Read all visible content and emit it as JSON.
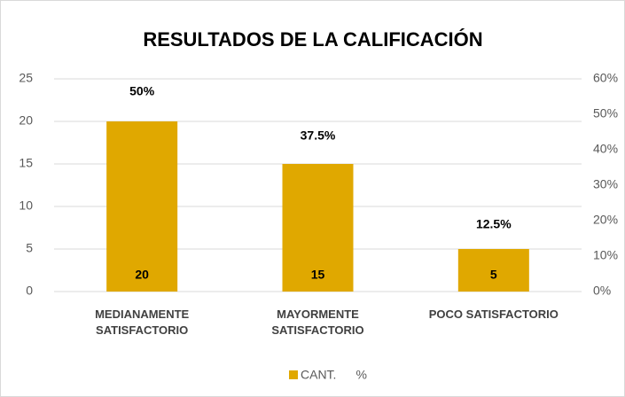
{
  "chart_data": {
    "type": "bar",
    "title": "RESULTADOS DE LA CALIFICACIÓN",
    "categories": [
      "MEDIANAMENTE SATISFACTORIO",
      "MAYORMENTE SATISFACTORIO",
      "POCO SATISFACTORIO"
    ],
    "series": [
      {
        "name": "CANT.",
        "color": "#e0a800",
        "values": [
          20,
          15,
          5
        ]
      },
      {
        "name": "%",
        "axis": "y2",
        "values": [
          50,
          37.5,
          12.5
        ],
        "value_labels": [
          "50%",
          "37.5%",
          "12.5%"
        ]
      }
    ],
    "ylim": [
      0,
      25
    ],
    "yticks": [
      0,
      5,
      10,
      15,
      20,
      25
    ],
    "y2lim": [
      0,
      60
    ],
    "y2ticks": [
      {
        "value": 0,
        "label": "0%"
      },
      {
        "value": 10,
        "label": "10%"
      },
      {
        "value": 20,
        "label": "20%"
      },
      {
        "value": 30,
        "label": "30%"
      },
      {
        "value": 40,
        "label": "40%"
      },
      {
        "value": 50,
        "label": "50%"
      },
      {
        "value": 60,
        "label": "60%"
      }
    ],
    "grid": true,
    "legend": "bottom"
  }
}
